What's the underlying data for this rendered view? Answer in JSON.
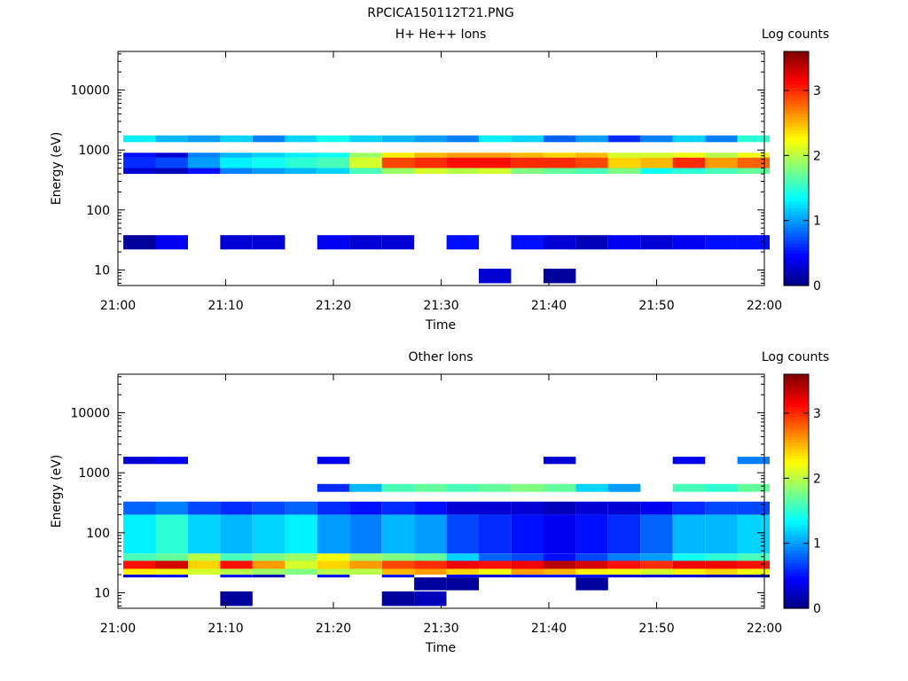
{
  "figure": {
    "title": "RPCICA150112T21.PNG"
  },
  "chart_data": [
    {
      "type": "heatmap",
      "title": "H+ He++ Ions",
      "xlabel": "Time",
      "ylabel": "Energy (eV)",
      "x_ticks": [
        "21:00",
        "21:10",
        "21:20",
        "21:30",
        "21:40",
        "21:50",
        "22:00"
      ],
      "x_range": [
        "21:00",
        "22:00"
      ],
      "y_scale": "log",
      "y_ticks": [
        "10",
        "100",
        "1000",
        "10000"
      ],
      "y_range": [
        5.5,
        44000
      ],
      "colorbar": {
        "label": "Log counts",
        "ticks": [
          "0",
          "1",
          "2",
          "3"
        ],
        "range": [
          0,
          3.6
        ],
        "colormap": "jet"
      },
      "time_bins": [
        "21:02",
        "21:05",
        "21:08",
        "21:11",
        "21:14",
        "21:17",
        "21:20",
        "21:23",
        "21:26",
        "21:29",
        "21:32",
        "21:35",
        "21:38",
        "21:41",
        "21:44",
        "21:47",
        "21:50",
        "21:53",
        "21:56",
        "21:59"
      ],
      "bands": [
        {
          "emin": 500,
          "emax": 750,
          "counts": [
            0.6,
            0.7,
            1.0,
            1.3,
            1.4,
            1.5,
            1.6,
            2.1,
            2.9,
            3.0,
            3.1,
            3.1,
            3.0,
            3.0,
            2.9,
            2.4,
            2.5,
            3.0,
            2.6,
            2.8
          ]
        },
        {
          "emin": 750,
          "emax": 900,
          "counts": [
            0.5,
            0.3,
            0.9,
            1.1,
            1.2,
            1.3,
            1.4,
            1.9,
            2.3,
            2.5,
            2.6,
            2.6,
            2.5,
            2.4,
            2.5,
            2.1,
            2.1,
            2.2,
            2.0,
            2.2
          ]
        },
        {
          "emin": 400,
          "emax": 500,
          "counts": [
            0.3,
            0.2,
            0.5,
            0.9,
            1.0,
            1.1,
            1.2,
            1.6,
            1.9,
            2.1,
            2.0,
            2.1,
            1.8,
            1.7,
            1.6,
            1.8,
            1.4,
            1.5,
            1.6,
            1.7
          ]
        },
        {
          "emin": 1350,
          "emax": 1750,
          "counts": [
            1.3,
            1.1,
            1.0,
            1.2,
            0.9,
            1.2,
            1.4,
            1.2,
            1.1,
            1.0,
            0.9,
            1.3,
            1.2,
            0.8,
            1.0,
            0.6,
            0.9,
            1.2,
            0.9,
            1.5
          ]
        },
        {
          "emin": 22,
          "emax": 38,
          "counts": [
            0.1,
            0.4,
            0,
            0.3,
            0.3,
            0,
            0.4,
            0.3,
            0.3,
            0,
            0.5,
            0,
            0.5,
            0.3,
            0.2,
            0.4,
            0.3,
            0.4,
            0.5,
            0.5
          ]
        },
        {
          "emin": 6,
          "emax": 10.5,
          "counts": [
            0,
            0,
            0,
            0,
            0,
            0,
            0,
            0,
            0,
            0,
            0,
            0.3,
            0,
            0.1,
            0,
            0,
            0,
            0,
            0,
            0
          ]
        }
      ]
    },
    {
      "type": "heatmap",
      "title": "Other Ions",
      "xlabel": "Time",
      "ylabel": "Energy (eV)",
      "x_ticks": [
        "21:00",
        "21:10",
        "21:20",
        "21:30",
        "21:40",
        "21:50",
        "22:00"
      ],
      "x_range": [
        "21:00",
        "22:00"
      ],
      "y_scale": "log",
      "y_ticks": [
        "10",
        "100",
        "1000",
        "10000"
      ],
      "y_range": [
        5.5,
        44000
      ],
      "colorbar": {
        "label": "Log counts",
        "ticks": [
          "0",
          "1",
          "2",
          "3"
        ],
        "range": [
          0,
          3.6
        ],
        "colormap": "jet"
      },
      "time_bins": [
        "21:02",
        "21:05",
        "21:08",
        "21:11",
        "21:14",
        "21:17",
        "21:20",
        "21:23",
        "21:26",
        "21:29",
        "21:32",
        "21:35",
        "21:38",
        "21:41",
        "21:44",
        "21:47",
        "21:50",
        "21:53",
        "21:56",
        "21:59"
      ],
      "bands": [
        {
          "emin": 25,
          "emax": 34,
          "counts": [
            3.1,
            3.3,
            2.4,
            3.1,
            2.6,
            2.1,
            2.4,
            2.6,
            2.9,
            3.0,
            3.2,
            3.1,
            3.2,
            3.4,
            3.3,
            3.1,
            3.0,
            3.2,
            3.2,
            3.1
          ]
        },
        {
          "emin": 20,
          "emax": 25,
          "counts": [
            2.3,
            2.2,
            2.1,
            2.0,
            1.9,
            1.8,
            2.0,
            2.0,
            2.5,
            2.6,
            2.4,
            2.2,
            2.6,
            2.5,
            2.3,
            2.2,
            2.1,
            2.3,
            2.4,
            2.2
          ]
        },
        {
          "emin": 34,
          "emax": 45,
          "counts": [
            1.6,
            1.7,
            2.0,
            1.6,
            1.8,
            1.9,
            2.2,
            1.9,
            1.8,
            1.7,
            1.2,
            0.8,
            0.7,
            0.5,
            0.7,
            0.9,
            1.0,
            1.4,
            1.5,
            1.6
          ]
        },
        {
          "emin": 45,
          "emax": 200,
          "counts": [
            1.3,
            1.5,
            1.2,
            1.1,
            1.2,
            1.3,
            1.0,
            0.9,
            1.1,
            1.0,
            0.7,
            0.6,
            0.5,
            0.4,
            0.5,
            0.6,
            0.8,
            1.1,
            1.1,
            1.2
          ]
        },
        {
          "emin": 200,
          "emax": 330,
          "counts": [
            0.8,
            0.9,
            0.7,
            0.6,
            0.7,
            0.8,
            0.6,
            0.5,
            0.6,
            0.5,
            0.3,
            0.3,
            0.3,
            0.2,
            0.3,
            0.3,
            0.4,
            0.6,
            0.7,
            0.7
          ]
        },
        {
          "emin": 480,
          "emax": 650,
          "counts": [
            0,
            0,
            0,
            0,
            0,
            0,
            0.6,
            1.1,
            1.6,
            1.7,
            1.6,
            1.7,
            1.8,
            1.7,
            1.2,
            1.0,
            0,
            1.6,
            1.5,
            1.7
          ]
        },
        {
          "emin": 1400,
          "emax": 1850,
          "counts": [
            0.3,
            0.4,
            0,
            0,
            0,
            0,
            0.4,
            0,
            0,
            0,
            0,
            0,
            0,
            0.3,
            0,
            0,
            0,
            0.4,
            0,
            0.9
          ]
        },
        {
          "emin": 18,
          "emax": 20,
          "counts": [
            0.3,
            0.5,
            0,
            0.5,
            0.2,
            0,
            0.5,
            0,
            0.5,
            0,
            0.4,
            0.3,
            0.5,
            0.5,
            0.5,
            0.3,
            0.3,
            0.3,
            0.2,
            0.1
          ]
        },
        {
          "emin": 11,
          "emax": 18,
          "counts": [
            0,
            0,
            0,
            0,
            0,
            0,
            0,
            0,
            0,
            0.1,
            0.1,
            0,
            0,
            0,
            0.1,
            0,
            0,
            0,
            0,
            0
          ]
        },
        {
          "emin": 6,
          "emax": 10.5,
          "counts": [
            0,
            0,
            0,
            0.1,
            0,
            0,
            0,
            0,
            0.1,
            0.2,
            0,
            0,
            0,
            0,
            0,
            0,
            0,
            0,
            0,
            0
          ]
        }
      ]
    }
  ]
}
